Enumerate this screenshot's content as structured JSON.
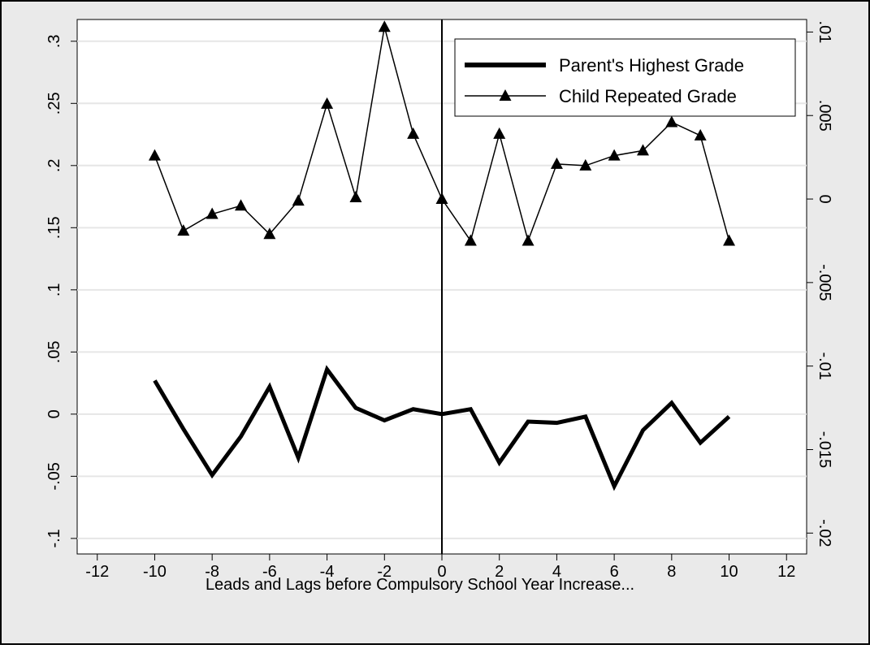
{
  "chart_data": {
    "type": "line",
    "title": "",
    "xlabel": "Leads and Lags before Compulsory School Year Increase...",
    "ylabel_left": "",
    "ylabel_right": "",
    "xlim": [
      -12.7,
      12.7
    ],
    "ylim_left": [
      -0.1125,
      0.3175
    ],
    "ylim_right": [
      -0.02125,
      0.01075
    ],
    "x_ticks": [
      -12,
      -10,
      -8,
      -6,
      -4,
      -2,
      0,
      2,
      4,
      6,
      8,
      10,
      12
    ],
    "x_tick_labels": [
      "-12",
      "-10",
      "-8",
      "-6",
      "-4",
      "-2",
      "0",
      "2",
      "4",
      "6",
      "8",
      "10",
      "12"
    ],
    "y_left_ticks": [
      -0.1,
      -0.05,
      0,
      0.05,
      0.1,
      0.15,
      0.2,
      0.25,
      0.3
    ],
    "y_left_tick_labels": [
      "-.1",
      "-.05",
      "0",
      ".05",
      ".1",
      ".15",
      ".2",
      ".25",
      ".3"
    ],
    "y_right_ticks": [
      -0.02,
      -0.015,
      -0.01,
      -0.005,
      0,
      0.005,
      0.01
    ],
    "y_right_tick_labels": [
      "-.02",
      "-.015",
      "-.01",
      "-.005",
      "0",
      ".005",
      ".01"
    ],
    "grid": true,
    "reference_line_x": 0,
    "legend_position": "top-right",
    "series": [
      {
        "name": "Parent's Highest Grade",
        "axis": "left",
        "style": "thick-line",
        "x": [
          -10,
          -9,
          -8,
          -7,
          -6,
          -5,
          -4,
          -3,
          -2,
          -1,
          0,
          1,
          2,
          3,
          4,
          5,
          6,
          7,
          8,
          9,
          10
        ],
        "values": [
          0.027,
          -0.012,
          -0.049,
          -0.018,
          0.022,
          -0.035,
          0.036,
          0.005,
          -0.005,
          0.004,
          0.0,
          0.004,
          -0.039,
          -0.006,
          -0.007,
          -0.002,
          -0.058,
          -0.013,
          0.009,
          -0.023,
          -0.002
        ]
      },
      {
        "name": "Child Repeated Grade",
        "axis": "right",
        "style": "thin-line-triangle-markers",
        "x": [
          -10,
          -9,
          -8,
          -7,
          -6,
          -5,
          -4,
          -3,
          -2,
          -1,
          0,
          1,
          2,
          3,
          4,
          5,
          6,
          7,
          8,
          9,
          10
        ],
        "values": [
          0.0026,
          -0.0019,
          -0.0009,
          -0.0004,
          -0.0021,
          -0.0001,
          0.0057,
          0.0001,
          0.0103,
          0.0039,
          0.0,
          -0.0025,
          0.0039,
          -0.0025,
          0.0021,
          0.002,
          0.0026,
          0.0029,
          0.0046,
          0.0038,
          -0.0025
        ]
      }
    ]
  },
  "colors": {
    "frame_background": "#eaeaea",
    "plot_background": "#ffffff",
    "grid": "#e6e6e6",
    "line": "#000000"
  }
}
